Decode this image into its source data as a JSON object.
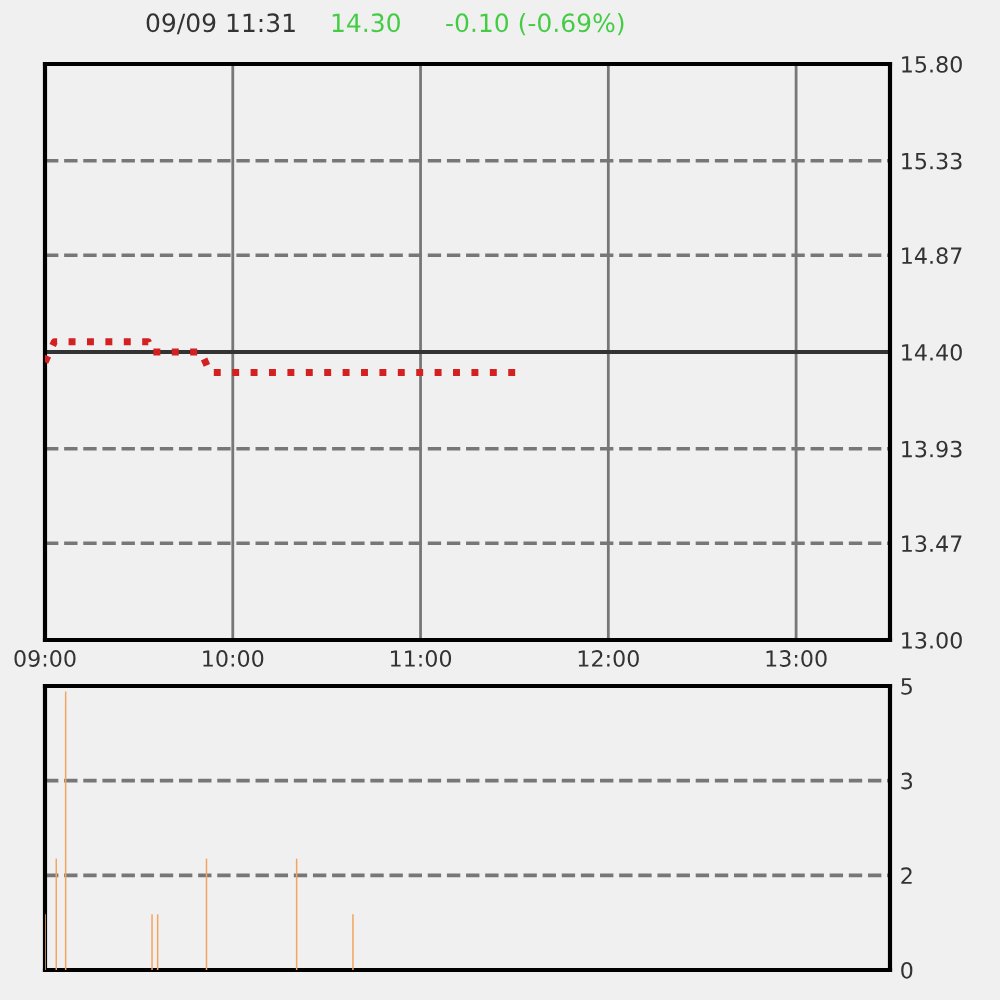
{
  "chart_data": [
    {
      "type": "line",
      "title": "09/09 11:31",
      "annotations": [
        "14.30",
        "-0.10 (-0.69%)"
      ],
      "series": [
        {
          "color": "#d42020",
          "x": [
            9.0,
            9.05,
            9.55,
            9.57,
            9.83,
            9.88,
            11.52
          ],
          "values": [
            14.35,
            14.45,
            14.45,
            14.4,
            14.4,
            14.3,
            14.3
          ]
        }
      ],
      "line_style": "dotted",
      "marker": "none",
      "xlim": [
        9,
        13.5
      ],
      "xticks": [
        {
          "value": 9,
          "label": "09:00"
        },
        {
          "value": 10,
          "label": "10:00"
        },
        {
          "value": 11,
          "label": "11:00"
        },
        {
          "value": 12,
          "label": "12:00"
        },
        {
          "value": 13,
          "label": "13:00"
        }
      ],
      "ylim": [
        13.0,
        15.8
      ],
      "yticks": [
        {
          "value": 13.0,
          "label": "13.00"
        },
        {
          "value": 13.47,
          "label": "13.47"
        },
        {
          "value": 13.93,
          "label": "13.93"
        },
        {
          "value": 14.4,
          "label": "14.40"
        },
        {
          "value": 14.87,
          "label": "14.87"
        },
        {
          "value": 15.33,
          "label": "15.33"
        },
        {
          "value": 15.8,
          "label": "15.80"
        }
      ],
      "ref_lines": [
        {
          "axis": "y",
          "value": 14.4,
          "color": "#333333",
          "line_style": "solid"
        }
      ],
      "grid": true
    },
    {
      "type": "bar",
      "series": [
        {
          "color": "#f4a460",
          "x": [
            9.0,
            9.06,
            9.11,
            9.57,
            9.6,
            9.86,
            10.34,
            10.64
          ],
          "values": [
            1,
            2,
            5,
            1,
            1,
            2,
            2,
            1
          ]
        }
      ],
      "xlim": [
        9,
        13.5
      ],
      "ylim": [
        0,
        5.1
      ],
      "yticks": [
        0,
        {
          "value": 1.7,
          "label": "2"
        },
        {
          "value": 3.4,
          "label": "3"
        },
        {
          "value": 5.1,
          "label": "5"
        }
      ],
      "tick_labels": "y",
      "grid": "y"
    }
  ]
}
